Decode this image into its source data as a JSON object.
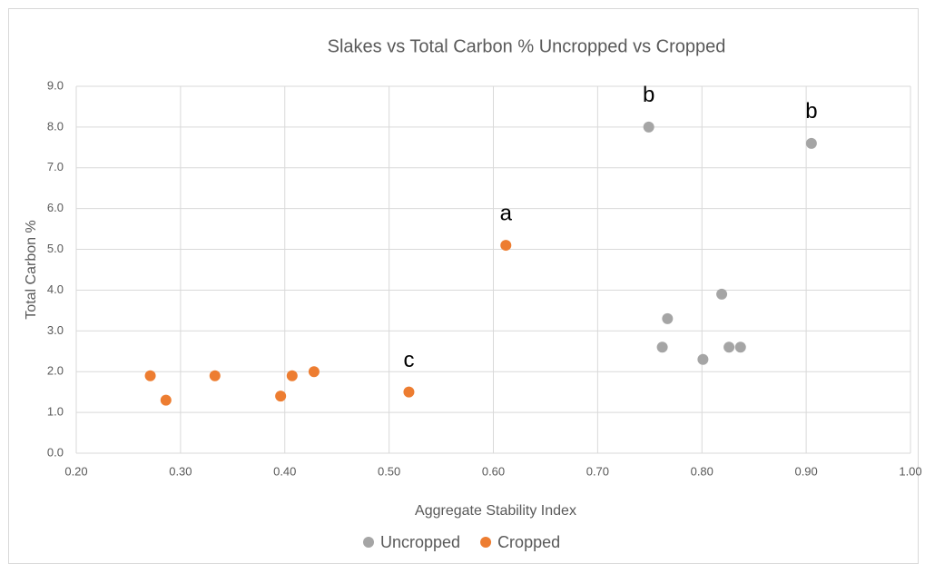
{
  "chart_data": {
    "type": "scatter",
    "title": "Slakes vs Total Carbon % Uncropped vs Cropped",
    "x_label": "Aggregate Stability Index",
    "y_label": "Total Carbon %",
    "series": [
      {
        "name": "Uncropped",
        "color": "#a5a5a5",
        "x": [
          0.749,
          0.905,
          0.819,
          0.767,
          0.762,
          0.801,
          0.826,
          0.837
        ],
        "values": [
          8.0,
          7.6,
          3.9,
          3.3,
          2.6,
          2.3,
          2.6,
          2.6
        ]
      },
      {
        "name": "Cropped",
        "color": "#ed7d31",
        "x": [
          0.271,
          0.286,
          0.333,
          0.396,
          0.407,
          0.428,
          0.519,
          0.612
        ],
        "values": [
          1.9,
          1.3,
          1.9,
          1.4,
          1.9,
          2.0,
          1.5,
          5.1
        ]
      }
    ],
    "annotations": [
      {
        "text": "b",
        "x": 0.749,
        "y": 8.0
      },
      {
        "text": "b",
        "x": 0.905,
        "y": 7.6
      },
      {
        "text": "a",
        "x": 0.612,
        "y": 5.1
      },
      {
        "text": "c",
        "x": 0.519,
        "y": 1.5
      }
    ],
    "xlim": [
      0.2,
      1.0
    ],
    "xticks": [
      {
        "value": 0.2,
        "label": "0.20"
      },
      {
        "value": 0.3,
        "label": "0.30"
      },
      {
        "value": 0.4,
        "label": "0.40"
      },
      {
        "value": 0.5,
        "label": "0.50"
      },
      {
        "value": 0.6,
        "label": "0.60"
      },
      {
        "value": 0.7,
        "label": "0.70"
      },
      {
        "value": 0.8,
        "label": "0.80"
      },
      {
        "value": 0.9,
        "label": "0.90"
      },
      {
        "value": 1.0,
        "label": "1.00"
      }
    ],
    "ylim": [
      0,
      9
    ],
    "yticks": [
      {
        "value": 0,
        "label": "0.0"
      },
      {
        "value": 1,
        "label": "1.0"
      },
      {
        "value": 2,
        "label": "2.0"
      },
      {
        "value": 3,
        "label": "3.0"
      },
      {
        "value": 4,
        "label": "4.0"
      },
      {
        "value": 5,
        "label": "5.0"
      },
      {
        "value": 6,
        "label": "6.0"
      },
      {
        "value": 7,
        "label": "7.0"
      },
      {
        "value": 8,
        "label": "8.0"
      },
      {
        "value": 9,
        "label": "9.0"
      }
    ],
    "grid": true,
    "legend": "bottom"
  }
}
